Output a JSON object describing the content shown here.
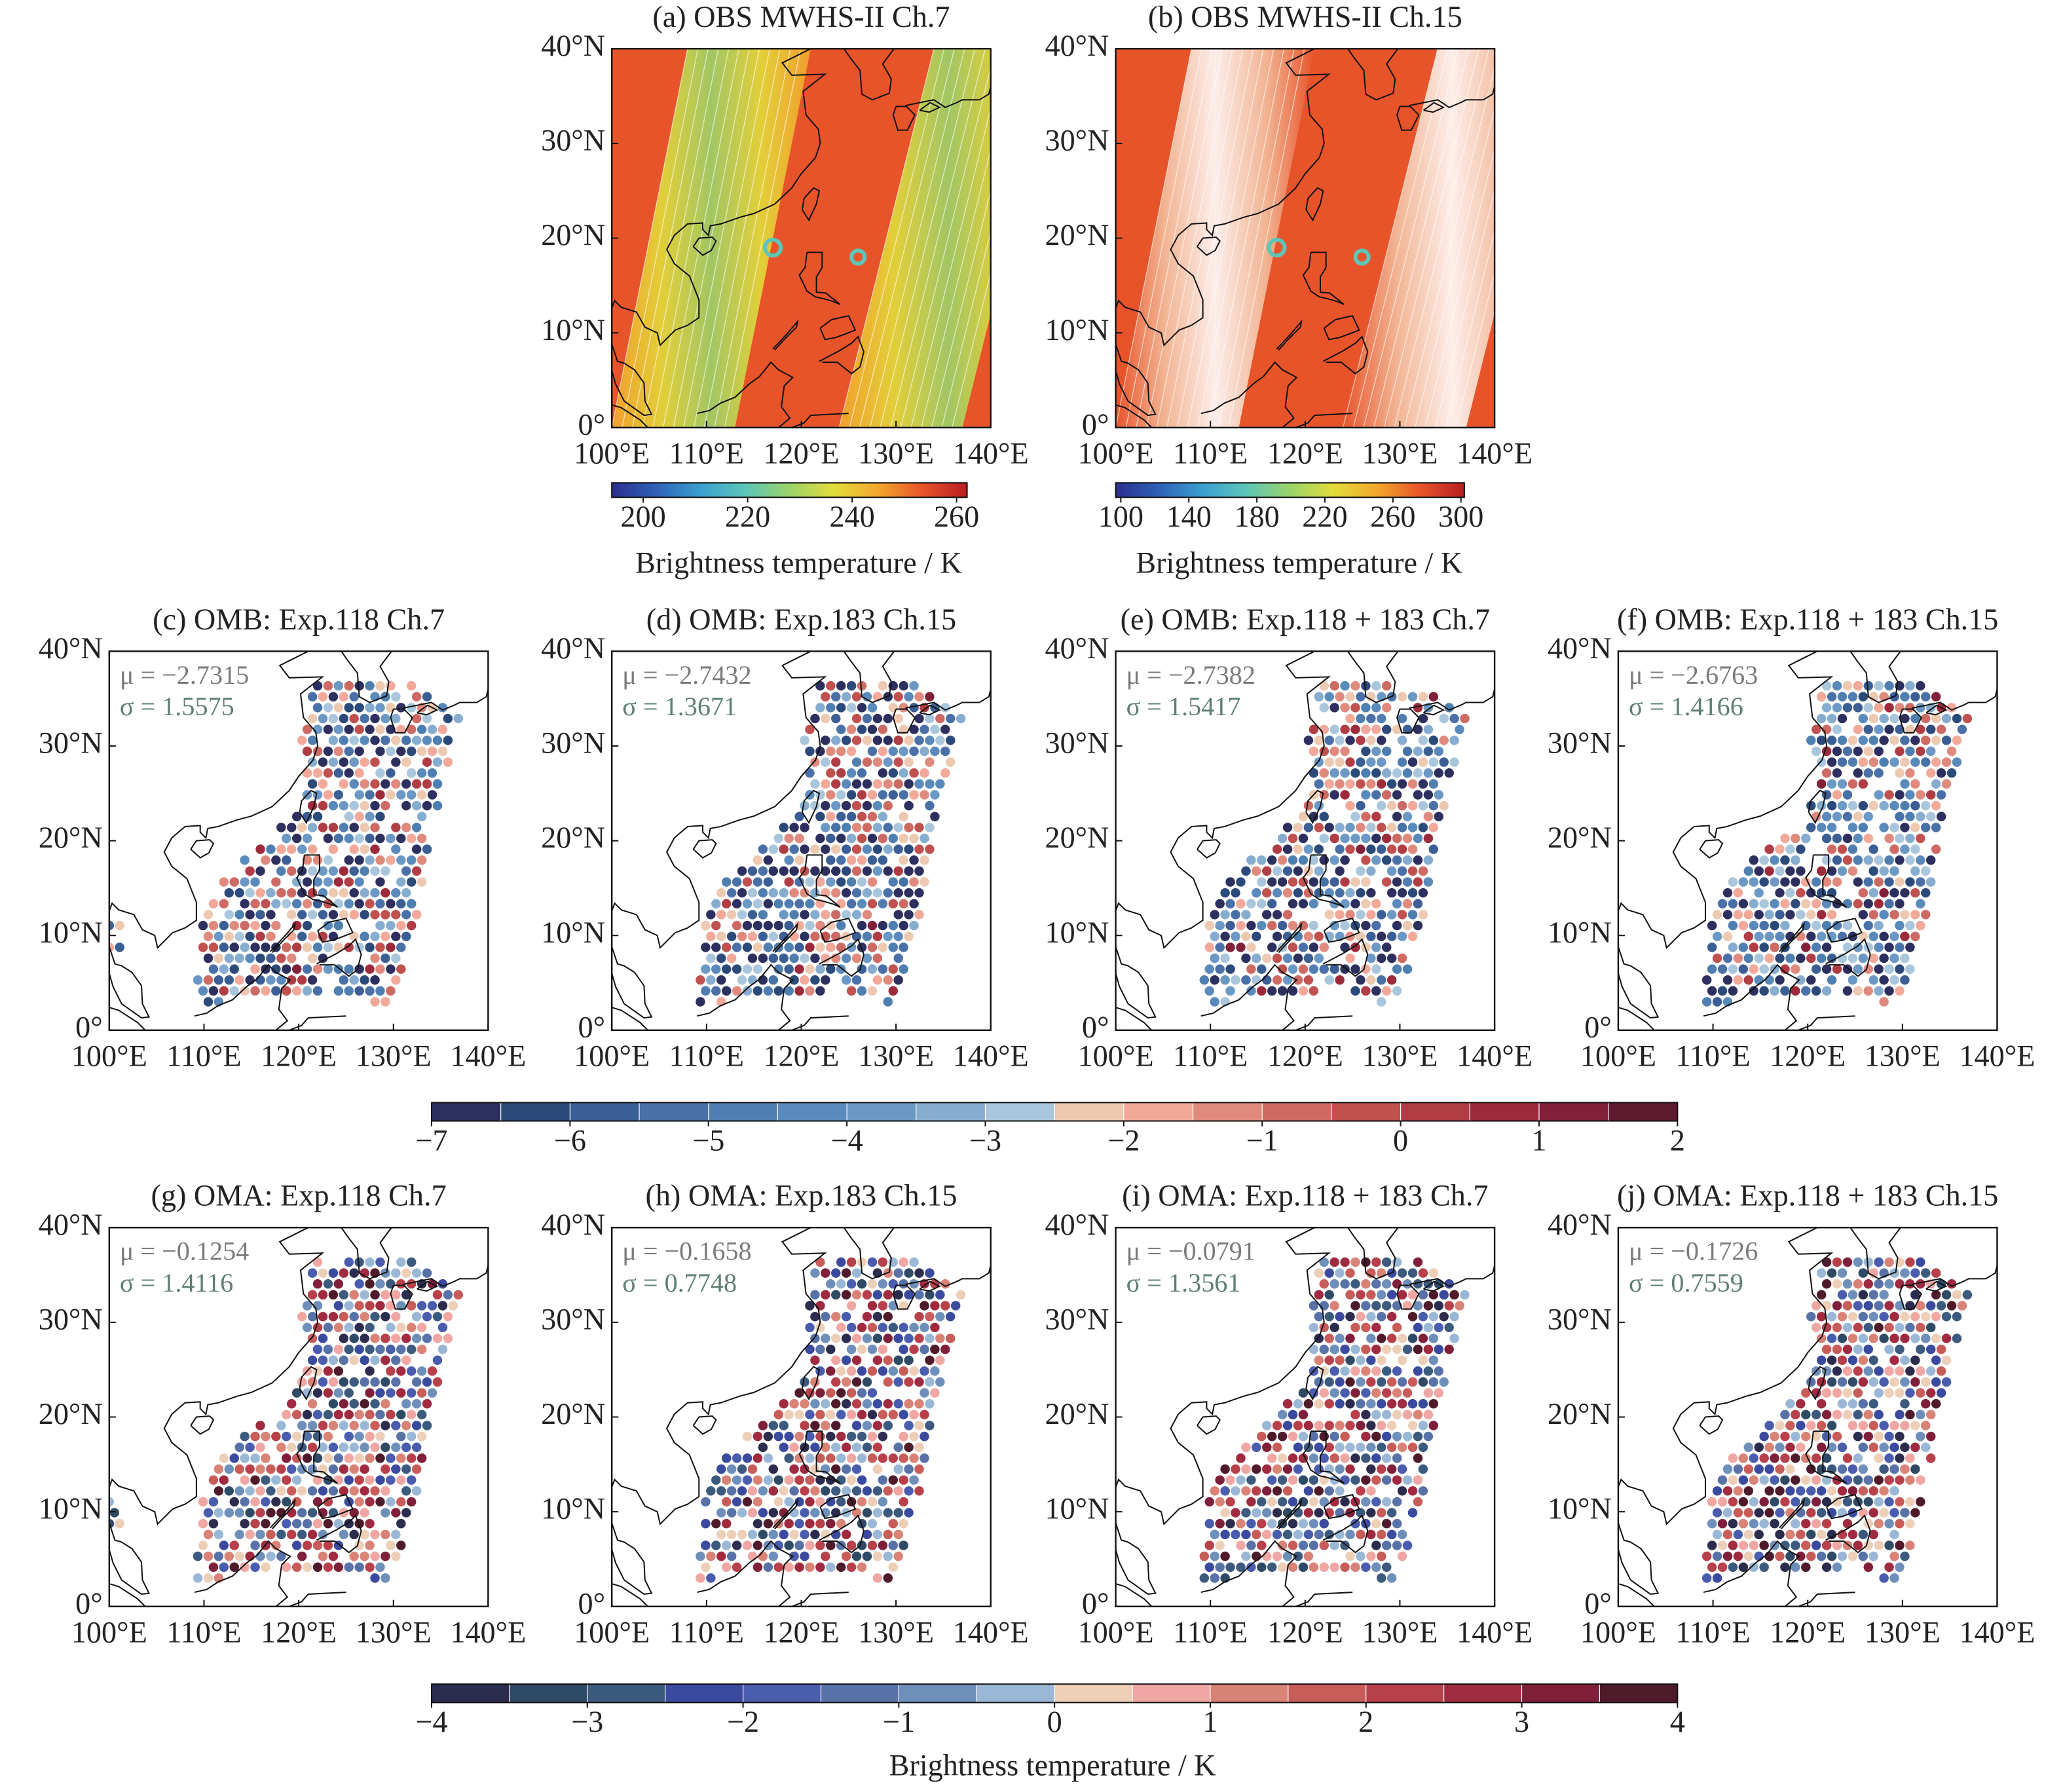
{
  "figure": {
    "map_axes": {
      "xlim": [
        100,
        140
      ],
      "ylim": [
        0,
        40
      ],
      "xticks": [
        {
          "value": 100,
          "label": "100°E"
        },
        {
          "value": 110,
          "label": "110°E"
        },
        {
          "value": 120,
          "label": "120°E"
        },
        {
          "value": 130,
          "label": "130°E"
        },
        {
          "value": 140,
          "label": "140°E"
        }
      ],
      "yticks": [
        {
          "value": 0,
          "label": "0°"
        },
        {
          "value": 10,
          "label": "10°N"
        },
        {
          "value": 20,
          "label": "20°N"
        },
        {
          "value": 30,
          "label": "30°N"
        },
        {
          "value": 40,
          "label": "40°N"
        }
      ]
    },
    "panels": [
      {
        "title": "(a) OBS MWHS-II Ch.7",
        "type": "observation",
        "colorbar": 0
      },
      {
        "title": "(b) OBS MWHS-II Ch.15",
        "type": "observation",
        "colorbar": 1
      },
      {
        "title": "(c) OMB: Exp.118 Ch.7",
        "type": "departure",
        "colorbar": 2,
        "mu": "μ = −2.7315",
        "sigma": "σ = 1.5575"
      },
      {
        "title": "(d) OMB: Exp.183 Ch.15",
        "type": "departure",
        "colorbar": 2,
        "mu": "μ = −2.7432",
        "sigma": "σ = 1.3671"
      },
      {
        "title": "(e) OMB: Exp.118 + 183 Ch.7",
        "type": "departure",
        "colorbar": 2,
        "mu": "μ = −2.7382",
        "sigma": "σ = 1.5417"
      },
      {
        "title": "(f) OMB: Exp.118 + 183 Ch.15",
        "type": "departure",
        "colorbar": 2,
        "mu": "μ = −2.6763",
        "sigma": "σ = 1.4166"
      },
      {
        "title": "(g) OMA: Exp.118 Ch.7",
        "type": "departure",
        "colorbar": 3,
        "mu": "μ = −0.1254",
        "sigma": "σ = 1.4116"
      },
      {
        "title": "(h) OMA: Exp.183 Ch.15",
        "type": "departure",
        "colorbar": 3,
        "mu": "μ = −0.1658",
        "sigma": "σ = 0.7748"
      },
      {
        "title": "(i) OMA: Exp.118 + 183 Ch.7",
        "type": "departure",
        "colorbar": 3,
        "mu": "μ = −0.0791",
        "sigma": "σ = 1.3561"
      },
      {
        "title": "(j) OMA: Exp.118 + 183 Ch.15",
        "type": "departure",
        "colorbar": 3,
        "mu": "μ = −0.1726",
        "sigma": "σ = 0.7559"
      }
    ],
    "colorbars": [
      {
        "label": "Brightness temperature / K",
        "lim": [
          194,
          262
        ],
        "ticks": [
          200,
          220,
          240,
          260
        ],
        "colormap": [
          "#2b2f8c",
          "#2f62b8",
          "#3aa0d0",
          "#5cc6b8",
          "#9ad36a",
          "#e2dc3a",
          "#f3a72d",
          "#e8542a",
          "#b81e22"
        ]
      },
      {
        "label": "Brightness temperature / K",
        "lim": [
          97,
          302
        ],
        "ticks": [
          100,
          140,
          180,
          220,
          260,
          300
        ],
        "colormap": [
          "#2b2f8c",
          "#2f62b8",
          "#3aa0d0",
          "#5cc6b8",
          "#9ad36a",
          "#e2dc3a",
          "#f3a72d",
          "#e8542a",
          "#b81e22"
        ]
      },
      {
        "lim": [
          -7,
          2
        ],
        "ticks": [
          {
            "value": -7,
            "label": "−7"
          },
          {
            "value": -6,
            "label": "−6"
          },
          {
            "value": -5,
            "label": "−5"
          },
          {
            "value": -4,
            "label": "−4"
          },
          {
            "value": -3,
            "label": "−3"
          },
          {
            "value": -2,
            "label": "−2"
          },
          {
            "value": -1,
            "label": "−1"
          },
          0,
          1,
          2
        ],
        "colors": [
          "#2d2f5e",
          "#2b4a7a",
          "#3b5f94",
          "#4a70a8",
          "#4f7fb0",
          "#5a8abb",
          "#6b98c4",
          "#86adcf",
          "#a9c6dc",
          "#ecc9b0",
          "#f2a99a",
          "#e08a7e",
          "#cd6a63",
          "#c0514f",
          "#b03c44",
          "#9d2a3a",
          "#82203a",
          "#5e1a2e"
        ]
      },
      {
        "label": "Brightness temperature / K",
        "lim": [
          -4,
          4
        ],
        "ticks": [
          {
            "value": -4,
            "label": "−4"
          },
          {
            "value": -3,
            "label": "−3"
          },
          {
            "value": -2,
            "label": "−2"
          },
          {
            "value": -1,
            "label": "−1"
          },
          0,
          1,
          2,
          3,
          4
        ],
        "colors": [
          "#2b2c4e",
          "#2f4a64",
          "#3c5a7d",
          "#3a4a9e",
          "#4a5cae",
          "#5872a8",
          "#6e8fba",
          "#9ab8d6",
          "#edcfb8",
          "#f0a7a3",
          "#d98276",
          "#c85c58",
          "#b8404a",
          "#a02a40",
          "#7f1f3a",
          "#4f1b2a"
        ]
      }
    ]
  }
}
